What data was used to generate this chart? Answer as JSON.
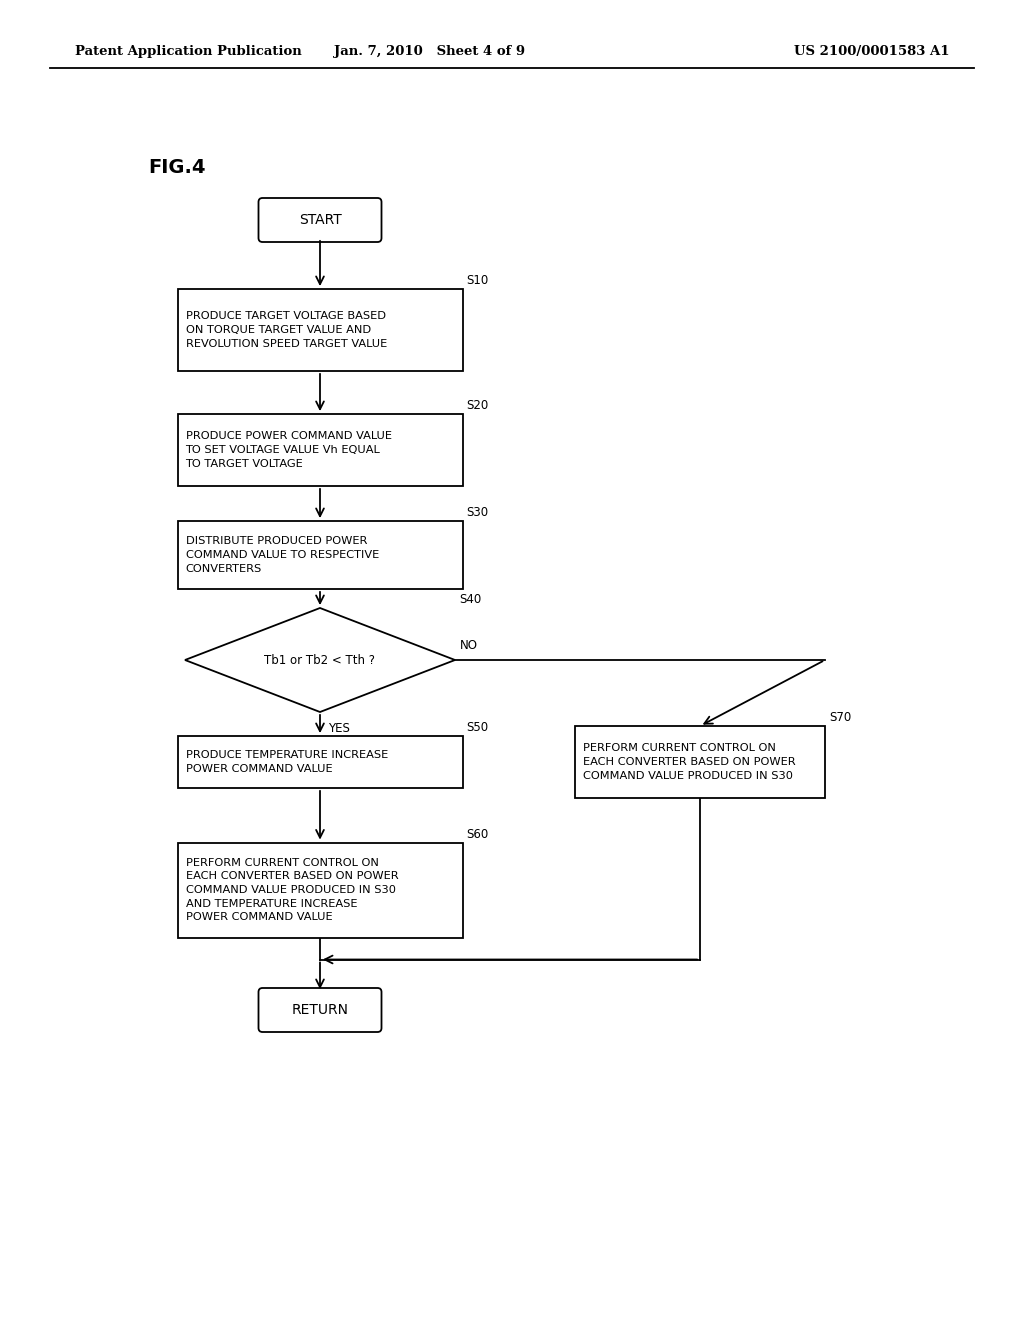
{
  "header_left": "Patent Application Publication",
  "header_center": "Jan. 7, 2010   Sheet 4 of 9",
  "header_right": "US 2100/0001583 A1",
  "fig_label": "FIG.4",
  "bg_color": "#ffffff",
  "text_color": "#000000",
  "s10_text": "PRODUCE TARGET VOLTAGE BASED\nON TORQUE TARGET VALUE AND\nREVOLUTION SPEED TARGET VALUE",
  "s20_text": "PRODUCE POWER COMMAND VALUE\nTO SET VOLTAGE VALUE Vh EQUAL\nTO TARGET VOLTAGE",
  "s30_text": "DISTRIBUTE PRODUCED POWER\nCOMMAND VALUE TO RESPECTIVE\nCONVERTERS",
  "s40_text": "Tb1 or Tb2 < Tth ?",
  "s50_text": "PRODUCE TEMPERATURE INCREASE\nPOWER COMMAND VALUE",
  "s60_text": "PERFORM CURRENT CONTROL ON\nEACH CONVERTER BASED ON POWER\nCOMMAND VALUE PRODUCED IN S30\nAND TEMPERATURE INCREASE\nPOWER COMMAND VALUE",
  "s70_text": "PERFORM CURRENT CONTROL ON\nEACH CONVERTER BASED ON POWER\nCOMMAND VALUE PRODUCED IN S30",
  "start_text": "START",
  "return_text": "RETURN",
  "yes_text": "YES",
  "no_text": "NO"
}
